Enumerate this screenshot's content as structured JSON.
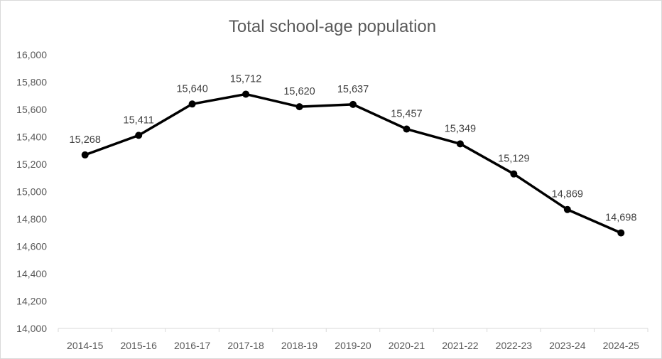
{
  "chart_data": {
    "type": "line",
    "title": "Total school-age population",
    "xlabel": "",
    "ylabel": "",
    "categories": [
      "2014-15",
      "2015-16",
      "2016-17",
      "2017-18",
      "2018-19",
      "2019-20",
      "2020-21",
      "2021-22",
      "2022-23",
      "2023-24",
      "2024-25"
    ],
    "series": [
      {
        "values": [
          15268,
          15411,
          15640,
          15712,
          15620,
          15637,
          15457,
          15349,
          15129,
          14869,
          14698
        ],
        "data_labels": [
          "15,268",
          "15,411",
          "15,640",
          "15,712",
          "15,620",
          "15,637",
          "15,457",
          "15,349",
          "15,129",
          "14,869",
          "14,698"
        ]
      }
    ],
    "ylim": [
      14000,
      16000
    ],
    "yticks": [
      14000,
      14200,
      14400,
      14600,
      14800,
      15000,
      15200,
      15400,
      15600,
      15800,
      16000
    ],
    "ytick_labels": [
      "14,000",
      "14,200",
      "14,400",
      "14,600",
      "14,800",
      "15,000",
      "15,200",
      "15,400",
      "15,600",
      "15,800",
      "16,000"
    ],
    "grid": false,
    "legend": "none",
    "colors": {
      "line": "#000000",
      "marker": "#000000",
      "axis": "#d9d9d9",
      "text": "#595959"
    }
  }
}
